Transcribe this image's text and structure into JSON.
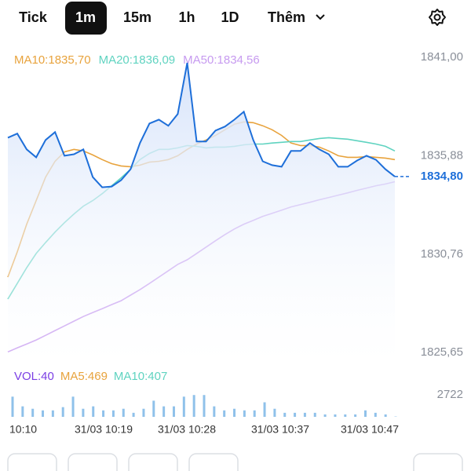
{
  "tabs": [
    "Tick",
    "1m",
    "15m",
    "1h",
    "1D",
    "Thêm"
  ],
  "chart_data": [
    {
      "type": "line",
      "ylim": [
        1825.65,
        1841.0
      ],
      "yticks": [
        {
          "value": 1841.0,
          "label": "1841,00"
        },
        {
          "value": 1835.88,
          "label": "1835,88"
        },
        {
          "value": 1830.76,
          "label": "1830,76"
        },
        {
          "value": 1825.65,
          "label": "1825,65"
        }
      ],
      "last_price": {
        "value": 1834.8,
        "label": "1834,80"
      },
      "series": [
        {
          "label": "MA10:1835,70",
          "color": "#e8a33d",
          "values": [
            1829.57,
            1830.88,
            1832.32,
            1833.55,
            1834.77,
            1835.59,
            1836.08,
            1836.21,
            1836.13,
            1835.92,
            1835.68,
            1835.47,
            1835.35,
            1835.31,
            1835.39,
            1835.55,
            1835.59,
            1835.68,
            1835.88,
            1836.21,
            1836.49,
            1836.7,
            1836.94,
            1837.23,
            1837.52,
            1837.64,
            1837.6,
            1837.44,
            1837.23,
            1836.94,
            1836.54,
            1836.41,
            1836.41,
            1836.33,
            1836.13,
            1835.88,
            1835.8,
            1835.8,
            1835.84,
            1835.8,
            1835.76,
            1835.68
          ]
        },
        {
          "label": "MA20:1836,09",
          "color": "#5fd3c0",
          "values": [
            1828.43,
            1829.24,
            1830.06,
            1830.8,
            1831.37,
            1831.91,
            1832.4,
            1832.85,
            1833.26,
            1833.55,
            1833.91,
            1834.32,
            1834.73,
            1835.18,
            1835.68,
            1836.0,
            1836.21,
            1836.21,
            1836.29,
            1836.41,
            1836.37,
            1836.29,
            1836.33,
            1836.33,
            1836.37,
            1836.45,
            1836.49,
            1836.49,
            1836.54,
            1836.58,
            1836.62,
            1836.62,
            1836.7,
            1836.78,
            1836.82,
            1836.78,
            1836.74,
            1836.66,
            1836.58,
            1836.49,
            1836.37,
            1836.13
          ]
        },
        {
          "label": "MA50:1834,56",
          "color": "#c79bf0",
          "values": [
            1825.68,
            1825.89,
            1826.09,
            1826.3,
            1826.54,
            1826.79,
            1827.03,
            1827.28,
            1827.52,
            1827.73,
            1827.93,
            1828.14,
            1828.34,
            1828.63,
            1828.92,
            1829.24,
            1829.57,
            1829.9,
            1830.23,
            1830.47,
            1830.8,
            1831.13,
            1831.46,
            1831.78,
            1832.07,
            1832.32,
            1832.52,
            1832.73,
            1832.89,
            1833.05,
            1833.22,
            1833.34,
            1833.46,
            1833.59,
            1833.71,
            1833.83,
            1833.95,
            1834.08,
            1834.2,
            1834.32,
            1834.41,
            1834.53
          ]
        },
        {
          "color": "#1e6fd9",
          "fill": true,
          "values": [
            1836.82,
            1837.03,
            1836.21,
            1835.8,
            1836.7,
            1837.11,
            1835.88,
            1835.96,
            1836.21,
            1834.77,
            1834.24,
            1834.28,
            1834.61,
            1835.18,
            1836.54,
            1837.56,
            1837.76,
            1837.44,
            1838.05,
            1840.71,
            1836.62,
            1836.62,
            1837.19,
            1837.4,
            1837.76,
            1838.17,
            1836.7,
            1835.59,
            1835.39,
            1835.31,
            1836.13,
            1836.13,
            1836.54,
            1836.21,
            1835.96,
            1835.31,
            1835.31,
            1835.63,
            1835.88,
            1835.67,
            1835.18,
            1834.8
          ]
        }
      ]
    },
    {
      "type": "bar",
      "legend": [
        {
          "label": "VOL:40",
          "color": "#7b3fe4"
        },
        {
          "label": "MA5:469",
          "color": "#e8a33d"
        },
        {
          "label": "MA10:407",
          "color": "#5fd3c0"
        }
      ],
      "color": "#8fc1ea",
      "ylim": [
        0,
        2722
      ],
      "yticks": [
        2722
      ],
      "values": [
        2500,
        1300,
        1000,
        800,
        800,
        1200,
        2500,
        1000,
        1300,
        800,
        800,
        1000,
        500,
        1000,
        2000,
        1300,
        1300,
        2500,
        2700,
        2700,
        1300,
        800,
        1000,
        800,
        800,
        1800,
        1000,
        500,
        500,
        500,
        500,
        300,
        300,
        300,
        300,
        800,
        500,
        300,
        40
      ],
      "time_labels": [
        "10:10",
        "31/03 10:19",
        "31/03 10:28",
        "31/03 10:37",
        "31/03 10:47"
      ]
    }
  ]
}
